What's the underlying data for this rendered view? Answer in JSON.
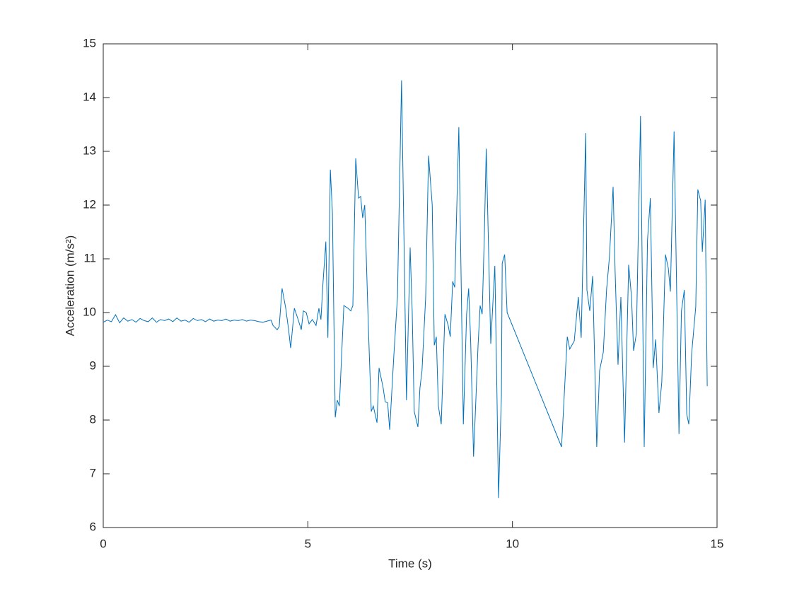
{
  "chart_data": {
    "type": "line",
    "xlabel": "Time (s)",
    "ylabel": "Acceleration (m/s²)",
    "xlim": [
      0,
      15
    ],
    "xticks": [
      0,
      5,
      10,
      15
    ],
    "ylim": [
      6,
      15
    ],
    "yticks": [
      6,
      7,
      8,
      9,
      10,
      11,
      12,
      13,
      14,
      15
    ],
    "grid": false,
    "series": [
      {
        "color": "#0072bd",
        "x": [
          0,
          0.1,
          0.2,
          0.3,
          0.4,
          0.5,
          0.6,
          0.7,
          0.8,
          0.9,
          1.0,
          1.1,
          1.2,
          1.3,
          1.4,
          1.5,
          1.6,
          1.7,
          1.8,
          1.9,
          2.0,
          2.1,
          2.2,
          2.3,
          2.4,
          2.5,
          2.6,
          2.7,
          2.8,
          2.9,
          3.0,
          3.1,
          3.2,
          3.3,
          3.4,
          3.5,
          3.6,
          3.7,
          3.8,
          3.9,
          4.0,
          4.1,
          4.15,
          4.25,
          4.3,
          4.37,
          4.46,
          4.53,
          4.58,
          4.63,
          4.67,
          4.75,
          4.84,
          4.89,
          4.96,
          5.03,
          5.11,
          5.2,
          5.27,
          5.32,
          5.37,
          5.44,
          5.49,
          5.55,
          5.6,
          5.67,
          5.72,
          5.77,
          5.88,
          5.98,
          6.05,
          6.1,
          6.17,
          6.24,
          6.29,
          6.34,
          6.39,
          6.48,
          6.55,
          6.6,
          6.69,
          6.74,
          6.84,
          6.89,
          6.95,
          7.0,
          7.1,
          7.19,
          7.29,
          7.41,
          7.5,
          7.55,
          7.6,
          7.69,
          7.74,
          7.79,
          7.88,
          7.95,
          8.04,
          8.09,
          8.14,
          8.19,
          8.26,
          8.35,
          8.43,
          8.48,
          8.54,
          8.59,
          8.69,
          8.8,
          8.88,
          8.93,
          8.98,
          9.05,
          9.16,
          9.21,
          9.26,
          9.31,
          9.36,
          9.47,
          9.57,
          9.62,
          9.66,
          9.73,
          9.75,
          9.81,
          9.87,
          11.2,
          11.34,
          11.4,
          11.51,
          11.61,
          11.68,
          11.79,
          11.82,
          11.89,
          11.96,
          12.06,
          12.13,
          12.22,
          12.3,
          12.37,
          12.46,
          12.51,
          12.58,
          12.65,
          12.74,
          12.84,
          12.91,
          12.96,
          13.03,
          13.13,
          13.22,
          13.3,
          13.37,
          13.44,
          13.5,
          13.58,
          13.65,
          13.74,
          13.81,
          13.86,
          13.95,
          14.07,
          14.13,
          14.2,
          14.26,
          14.31,
          14.38,
          14.48,
          14.53,
          14.6,
          14.64,
          14.71,
          14.76
        ],
        "values": [
          9.82,
          9.86,
          9.83,
          9.96,
          9.81,
          9.9,
          9.84,
          9.87,
          9.82,
          9.89,
          9.85,
          9.83,
          9.9,
          9.82,
          9.87,
          9.85,
          9.88,
          9.83,
          9.9,
          9.84,
          9.86,
          9.82,
          9.89,
          9.85,
          9.87,
          9.83,
          9.88,
          9.84,
          9.86,
          9.85,
          9.88,
          9.84,
          9.86,
          9.85,
          9.87,
          9.84,
          9.86,
          9.85,
          9.83,
          9.82,
          9.84,
          9.86,
          9.76,
          9.68,
          9.74,
          10.45,
          10.08,
          9.68,
          9.34,
          9.74,
          10.08,
          9.9,
          9.68,
          10.03,
          10.0,
          9.79,
          9.87,
          9.76,
          10.08,
          9.87,
          10.55,
          11.32,
          9.53,
          12.66,
          11.87,
          8.05,
          8.37,
          8.26,
          10.13,
          10.08,
          10.03,
          10.13,
          12.87,
          12.13,
          12.16,
          11.76,
          12.0,
          9.71,
          8.16,
          8.26,
          7.95,
          8.97,
          8.6,
          8.34,
          8.32,
          7.82,
          9.18,
          10.29,
          14.32,
          8.37,
          11.21,
          10.03,
          8.16,
          7.87,
          8.6,
          8.92,
          10.29,
          12.92,
          12.0,
          9.39,
          9.55,
          8.26,
          7.92,
          9.97,
          9.76,
          9.55,
          10.58,
          10.47,
          13.45,
          7.92,
          9.97,
          10.45,
          9.45,
          7.32,
          9.39,
          10.13,
          9.97,
          11.34,
          13.05,
          9.42,
          10.87,
          8.55,
          6.55,
          8.45,
          10.92,
          11.08,
          10.0,
          7.5,
          9.55,
          9.32,
          9.47,
          10.29,
          9.53,
          13.34,
          10.42,
          10.03,
          10.68,
          7.5,
          8.92,
          9.26,
          10.42,
          11.03,
          12.34,
          10.74,
          9.03,
          10.29,
          7.58,
          10.89,
          10.29,
          9.29,
          9.61,
          13.66,
          7.5,
          11.34,
          12.13,
          8.97,
          9.5,
          8.13,
          8.71,
          11.08,
          10.82,
          10.39,
          13.37,
          7.74,
          10.03,
          10.42,
          8.11,
          7.92,
          9.24,
          10.11,
          12.29,
          12.08,
          11.13,
          12.1,
          8.63
        ]
      }
    ]
  }
}
